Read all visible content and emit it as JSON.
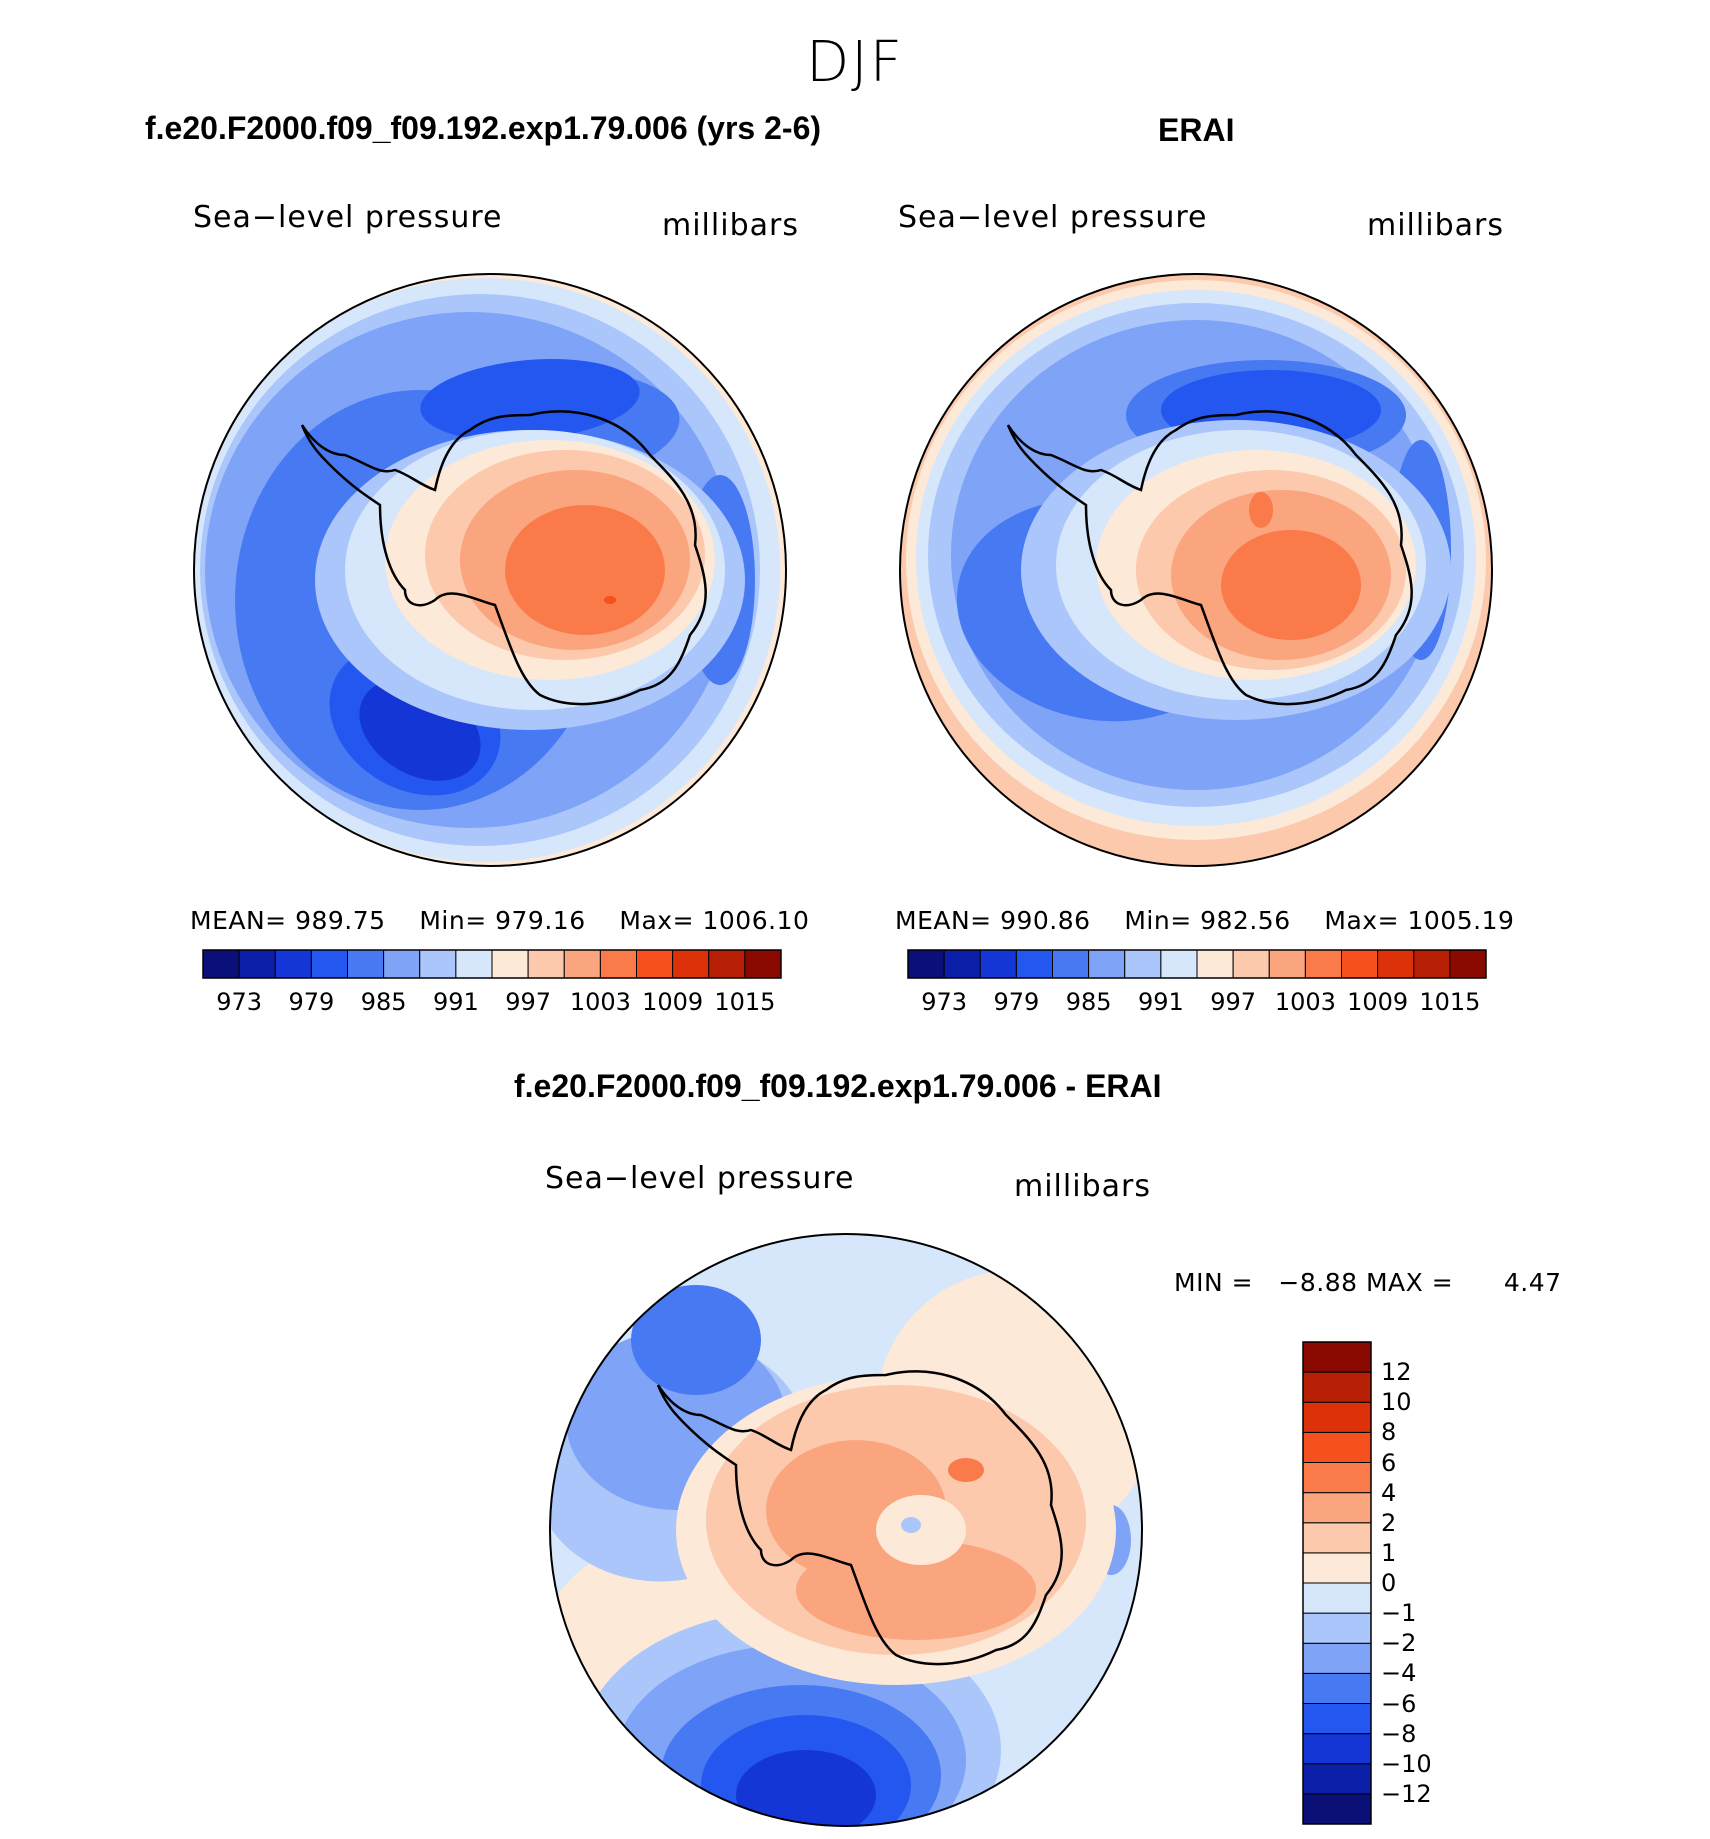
{
  "figure": {
    "season": "DJF",
    "left_title": "f.e20.F2000.f09_f09.192.exp1.79.006 (yrs 2-6)",
    "right_title": "ERAI",
    "diff_title": "f.e20.F2000.f09_f09.192.exp1.79.006 - ERAI"
  },
  "colors": {
    "abs_scale": [
      "#0a0f7a",
      "#0c1fa8",
      "#1436d6",
      "#2457f0",
      "#4679f2",
      "#7ea3f7",
      "#abc6fa",
      "#d6e6fb",
      "#fde9d8",
      "#fcc9ad",
      "#fba57f",
      "#fb7a4a",
      "#f5501e",
      "#dd3209",
      "#b82005",
      "#8a0a02"
    ],
    "diff_scale": [
      "#0a1075",
      "#0c1fa8",
      "#1436d6",
      "#2457f0",
      "#4679f2",
      "#7ea3f7",
      "#abc6fa",
      "#d6e6fb",
      "#fde9d8",
      "#fcc9ad",
      "#fba57f",
      "#fb7a4a",
      "#f5501e",
      "#dd3209",
      "#b82005",
      "#8a0a02"
    ]
  },
  "chart_data": [
    {
      "type": "heatmap",
      "name": "model",
      "projection": "south-polar-stereographic",
      "title": "f.e20.F2000.f09_f09.192.exp1.79.006 (yrs 2-6)",
      "variable": "Sea−level pressure",
      "units": "millibars",
      "mean_label": "MEAN=",
      "mean": "989.75",
      "min_label": "Min=",
      "min": "979.16",
      "max_label": "Max=",
      "max": "1006.10",
      "colorbar_ticks": [
        "973",
        "979",
        "985",
        "991",
        "997",
        "1003",
        "1009",
        "1015"
      ]
    },
    {
      "type": "heatmap",
      "name": "obs",
      "projection": "south-polar-stereographic",
      "title": "ERAI",
      "variable": "Sea−level pressure",
      "units": "millibars",
      "mean_label": "MEAN=",
      "mean": "990.86",
      "min_label": "Min=",
      "min": "982.56",
      "max_label": "Max=",
      "max": "1005.19",
      "colorbar_ticks": [
        "973",
        "979",
        "985",
        "991",
        "997",
        "1003",
        "1009",
        "1015"
      ]
    },
    {
      "type": "heatmap",
      "name": "difference",
      "projection": "south-polar-stereographic",
      "title": "f.e20.F2000.f09_f09.192.exp1.79.006 - ERAI",
      "variable": "Sea−level pressure",
      "units": "millibars",
      "min_label": "MIN =",
      "min": "−8.88",
      "max_label": "MAX =",
      "max": "4.47",
      "colorbar_ticks": [
        "12",
        "10",
        "8",
        "6",
        "4",
        "2",
        "1",
        "0",
        "−1",
        "−2",
        "−4",
        "−6",
        "−8",
        "−10",
        "−12"
      ]
    }
  ]
}
